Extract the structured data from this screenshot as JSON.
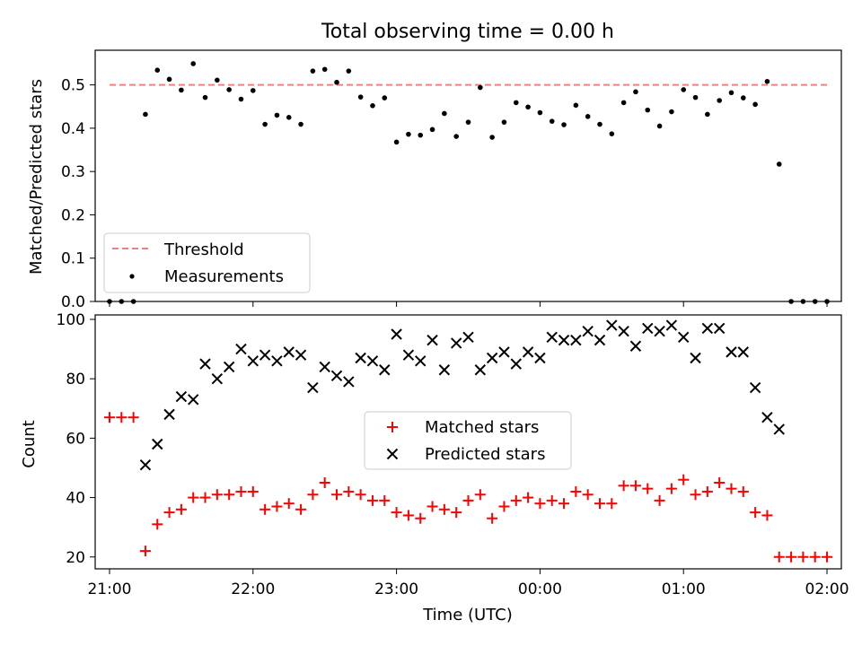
{
  "chart_data": [
    {
      "type": "scatter",
      "title": "Total observing time = 0.00 h",
      "ylabel": "Matched/Predicted stars",
      "xlabel": "",
      "xlim": [
        -6,
        306
      ],
      "ylim": [
        0.0,
        0.58
      ],
      "yticks": [
        "0.0",
        "0.1",
        "0.2",
        "0.3",
        "0.4",
        "0.5"
      ],
      "yticks_values": [
        0.0,
        0.1,
        0.2,
        0.3,
        0.4,
        0.5
      ],
      "legend_position": "lower left",
      "threshold": {
        "name": "Threshold",
        "value": 0.5,
        "x_start": 0,
        "x_end": 300,
        "color": "#f08080"
      },
      "series": [
        {
          "name": "Measurements",
          "color": "#000000",
          "x": [
            0,
            5,
            10,
            15,
            20,
            25,
            30,
            35,
            40,
            45,
            50,
            55,
            60,
            65,
            70,
            75,
            80,
            85,
            90,
            95,
            100,
            105,
            110,
            115,
            120,
            125,
            130,
            135,
            140,
            145,
            150,
            155,
            160,
            165,
            170,
            175,
            180,
            185,
            190,
            195,
            200,
            205,
            210,
            215,
            220,
            225,
            230,
            235,
            240,
            245,
            250,
            255,
            260,
            265,
            270,
            275,
            280,
            285,
            290,
            295,
            300
          ],
          "y": [
            0.0,
            0.0,
            0.0,
            0.432,
            0.534,
            0.513,
            0.488,
            0.549,
            0.471,
            0.511,
            0.489,
            0.467,
            0.487,
            0.409,
            0.43,
            0.425,
            0.409,
            0.532,
            0.536,
            0.506,
            0.532,
            0.472,
            0.452,
            0.47,
            0.368,
            0.386,
            0.384,
            0.397,
            0.434,
            0.381,
            0.414,
            0.494,
            0.379,
            0.414,
            0.459,
            0.449,
            0.436,
            0.416,
            0.408,
            0.453,
            0.427,
            0.409,
            0.387,
            0.459,
            0.484,
            0.442,
            0.405,
            0.438,
            0.489,
            0.471,
            0.432,
            0.464,
            0.482,
            0.47,
            0.455,
            0.508,
            0.317,
            0.0,
            0.0,
            0.0,
            0.0
          ]
        }
      ]
    },
    {
      "type": "scatter",
      "title": "",
      "ylabel": "Count",
      "xlabel": "Time (UTC)",
      "xlim": [
        -6,
        306
      ],
      "ylim": [
        16,
        101.5
      ],
      "yticks": [
        "20",
        "40",
        "60",
        "80",
        "100"
      ],
      "yticks_values": [
        20,
        40,
        60,
        80,
        100
      ],
      "xticks": [
        "21:00",
        "22:00",
        "23:00",
        "00:00",
        "01:00",
        "02:00"
      ],
      "xticks_values": [
        0,
        60,
        120,
        180,
        240,
        300
      ],
      "legend_position": "center",
      "series": [
        {
          "name": "Matched stars",
          "marker": "plus",
          "color": "#ff0000",
          "x": [
            0,
            5,
            10,
            15,
            20,
            25,
            30,
            35,
            40,
            45,
            50,
            55,
            60,
            65,
            70,
            75,
            80,
            85,
            90,
            95,
            100,
            105,
            110,
            115,
            120,
            125,
            130,
            135,
            140,
            145,
            150,
            155,
            160,
            165,
            170,
            175,
            180,
            185,
            190,
            195,
            200,
            205,
            210,
            215,
            220,
            225,
            230,
            235,
            240,
            245,
            250,
            255,
            260,
            265,
            270,
            275,
            280,
            285,
            290,
            295,
            300
          ],
          "y": [
            67,
            67,
            67,
            22,
            31,
            35,
            36,
            40,
            40,
            41,
            41,
            42,
            42,
            36,
            37,
            38,
            36,
            41,
            45,
            41,
            42,
            41,
            39,
            39,
            35,
            34,
            33,
            37,
            36,
            35,
            39,
            41,
            33,
            37,
            39,
            40,
            38,
            39,
            38,
            42,
            41,
            38,
            38,
            44,
            44,
            43,
            39,
            43,
            46,
            41,
            42,
            45,
            43,
            42,
            35,
            34,
            20,
            20,
            20,
            20,
            20
          ]
        },
        {
          "name": "Predicted stars",
          "marker": "x",
          "color": "#000000",
          "x": [
            15,
            20,
            25,
            30,
            35,
            40,
            45,
            50,
            55,
            60,
            65,
            70,
            75,
            80,
            85,
            90,
            95,
            100,
            105,
            110,
            115,
            120,
            125,
            130,
            135,
            140,
            145,
            150,
            155,
            160,
            165,
            170,
            175,
            180,
            185,
            190,
            195,
            200,
            205,
            210,
            215,
            220,
            225,
            230,
            235,
            240,
            245,
            250,
            255,
            260,
            265,
            270,
            275,
            280
          ],
          "y": [
            51,
            58,
            68,
            74,
            73,
            85,
            80,
            84,
            90,
            86,
            88,
            86,
            89,
            88,
            77,
            84,
            81,
            79,
            87,
            86,
            83,
            95,
            88,
            86,
            93,
            83,
            92,
            94,
            83,
            87,
            89,
            85,
            89,
            87,
            94,
            93,
            93,
            96,
            93,
            98,
            96,
            91,
            97,
            96,
            98,
            94,
            87,
            97,
            97,
            89,
            89,
            77,
            67,
            63
          ]
        }
      ]
    }
  ]
}
